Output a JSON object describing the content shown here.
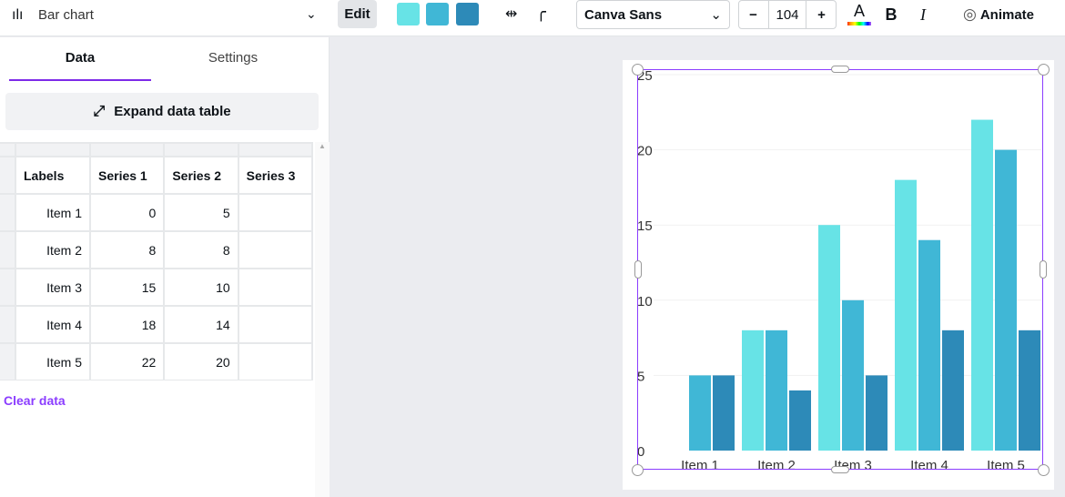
{
  "toolbar": {
    "chart_type": "Bar chart",
    "edit": "Edit",
    "colors": [
      "#67e3e6",
      "#40b7d6",
      "#2d8ab8"
    ],
    "font": "Canva Sans",
    "font_size": "104",
    "minus": "−",
    "plus": "+",
    "bold": "B",
    "italic": "I",
    "text_color": "A",
    "animate": "Animate"
  },
  "panel": {
    "tabs": [
      "Data",
      "Settings"
    ],
    "expand": "Expand data table",
    "clear": "Clear data",
    "headers": [
      "Labels",
      "Series 1",
      "Series 2",
      "Series 3"
    ],
    "rows": [
      [
        "Item 1",
        "0",
        "5"
      ],
      [
        "Item 2",
        "8",
        "8"
      ],
      [
        "Item 3",
        "15",
        "10"
      ],
      [
        "Item 4",
        "18",
        "14"
      ],
      [
        "Item 5",
        "22",
        "20"
      ]
    ]
  },
  "chart_data": {
    "type": "bar",
    "categories": [
      "Item 1",
      "Item 2",
      "Item 3",
      "Item 4",
      "Item 5"
    ],
    "series": [
      {
        "name": "Series 1",
        "values": [
          0,
          8,
          15,
          18,
          22
        ],
        "color": "#67e3e6"
      },
      {
        "name": "Series 2",
        "values": [
          5,
          8,
          10,
          14,
          20
        ],
        "color": "#40b7d6"
      },
      {
        "name": "Series 3",
        "values": [
          5,
          4,
          5,
          8,
          8
        ],
        "color": "#2d8ab8"
      }
    ],
    "yticks": [
      "0",
      "5",
      "10",
      "15",
      "20",
      "25"
    ],
    "ylim": [
      0,
      25
    ],
    "grid": true
  }
}
